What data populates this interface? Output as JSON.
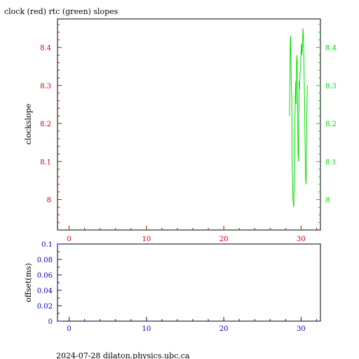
{
  "title": "clock (red) rtc (green) slopes",
  "footer": "2024-07-28  dilaton.physics.ubc.ca",
  "colors": {
    "red": "#cc0000",
    "green": "#00dd00",
    "blue": "#0000bb",
    "axis": "#000000"
  },
  "chart_data": [
    {
      "type": "line",
      "ylabel": "clockslope",
      "xlim": [
        -1.5,
        32.5
      ],
      "ylim": [
        7.92,
        8.475
      ],
      "x_ticks": [
        0,
        10,
        20,
        30
      ],
      "y_ticks_left": [
        8,
        8.1,
        8.2,
        8.3,
        8.4
      ],
      "y_ticks_right": [
        8,
        8.1,
        8.2,
        8.3,
        8.4
      ],
      "y_tick_labels_left": [
        "8",
        "8.1",
        "8.2",
        "8.3",
        "8.4"
      ],
      "y_tick_labels_right": [
        "8",
        "8.1",
        "8.2",
        "8.3",
        "8.4"
      ],
      "x_tick_labels": [
        "0",
        "10",
        "20",
        "30"
      ],
      "series": [
        {
          "color": "green",
          "x": [
            28.5,
            28.6,
            28.65,
            28.7,
            28.75,
            28.8,
            28.85,
            28.9,
            28.95,
            29.0,
            29.05,
            29.1,
            29.15,
            29.2,
            29.25,
            29.3,
            29.35,
            29.4,
            29.45,
            29.5,
            29.55,
            29.6,
            29.65,
            29.7,
            29.75,
            29.8,
            29.85,
            29.9,
            29.95,
            30.0,
            30.05,
            30.1,
            30.15,
            30.2,
            30.25,
            30.3,
            30.35,
            30.4,
            30.45,
            30.5,
            30.55,
            30.6,
            30.65,
            30.7,
            30.75,
            30.8
          ],
          "y": [
            8.22,
            8.42,
            8.43,
            8.35,
            8.3,
            8.26,
            8.08,
            8.05,
            8.0,
            7.99,
            7.98,
            8.05,
            8.14,
            8.2,
            8.27,
            8.31,
            8.25,
            8.35,
            8.38,
            8.36,
            8.25,
            8.12,
            8.1,
            8.2,
            8.31,
            8.29,
            8.33,
            8.34,
            8.36,
            8.39,
            8.41,
            8.38,
            8.4,
            8.42,
            8.45,
            8.43,
            8.38,
            8.32,
            8.25,
            8.18,
            8.1,
            8.05,
            8.04,
            8.13,
            8.24,
            8.3
          ]
        }
      ]
    },
    {
      "type": "line",
      "ylabel": "offset(ms)",
      "xlim": [
        -1.5,
        32.5
      ],
      "ylim": [
        0,
        0.1
      ],
      "x_ticks": [
        0,
        10,
        20,
        30
      ],
      "x_tick_labels": [
        "0",
        "10",
        "20",
        "30"
      ],
      "y_ticks": [
        0,
        0.02,
        0.04,
        0.06,
        0.08,
        0.1
      ],
      "y_tick_labels": [
        "0",
        "0.02",
        "0.04",
        "0.06",
        "0.08",
        "0.1"
      ],
      "series": []
    }
  ]
}
